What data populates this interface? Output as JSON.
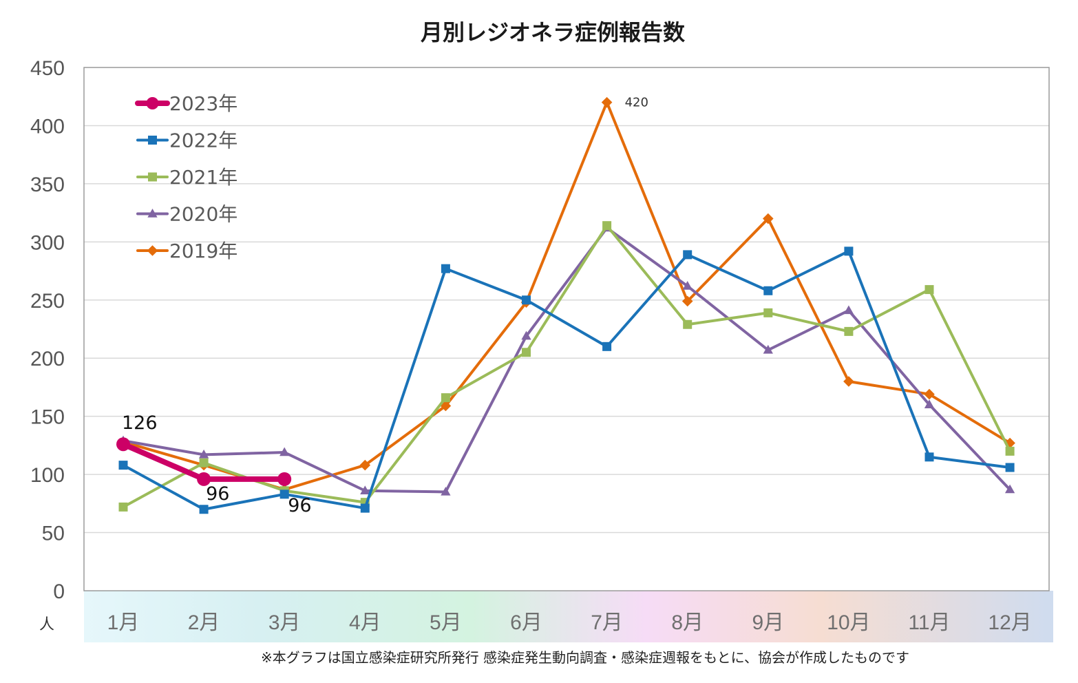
{
  "chart_data": {
    "type": "line",
    "title": "月別レジオネラ症例報告数",
    "y_unit_label": "人",
    "categories": [
      "1月",
      "2月",
      "3月",
      "4月",
      "5月",
      "6月",
      "7月",
      "8月",
      "9月",
      "10月",
      "11月",
      "12月"
    ],
    "ylim": [
      0,
      450
    ],
    "yticks": [
      0,
      50,
      100,
      150,
      200,
      250,
      300,
      350,
      400,
      450
    ],
    "grid": true,
    "legend_position": "top-left",
    "series": [
      {
        "name": "2023年",
        "color": "#cc0066",
        "marker": "circle",
        "values": [
          126,
          96,
          96,
          null,
          null,
          null,
          null,
          null,
          null,
          null,
          null,
          null
        ]
      },
      {
        "name": "2022年",
        "color": "#1a73b8",
        "marker": "square",
        "values": [
          108,
          70,
          83,
          71,
          277,
          250,
          210,
          289,
          258,
          292,
          115,
          106
        ]
      },
      {
        "name": "2021年",
        "color": "#9bbb59",
        "marker": "square",
        "values": [
          72,
          110,
          86,
          76,
          166,
          205,
          314,
          229,
          239,
          223,
          259,
          120
        ]
      },
      {
        "name": "2020年",
        "color": "#8064a2",
        "marker": "triangle",
        "values": [
          129,
          117,
          119,
          86,
          85,
          219,
          312,
          262,
          207,
          241,
          160,
          87
        ]
      },
      {
        "name": "2019年",
        "color": "#e46c0a",
        "marker": "diamond",
        "values": [
          128,
          108,
          87,
          108,
          159,
          248,
          420,
          249,
          320,
          180,
          169,
          127
        ]
      }
    ],
    "annotations": [
      {
        "text": "126",
        "series": "2023年",
        "month": "1月",
        "value": 126
      },
      {
        "text": "96",
        "series": "2023年",
        "month": "2月",
        "value": 96
      },
      {
        "text": "96",
        "series": "2023年",
        "month": "3月",
        "value": 96
      },
      {
        "text": "420",
        "series": "2019年",
        "month": "7月",
        "value": 420
      }
    ],
    "footnote": "※本グラフは国立感染症研究所発行 感染症発生動向調査・感染症週報をもとに、協会が作成したものです"
  }
}
